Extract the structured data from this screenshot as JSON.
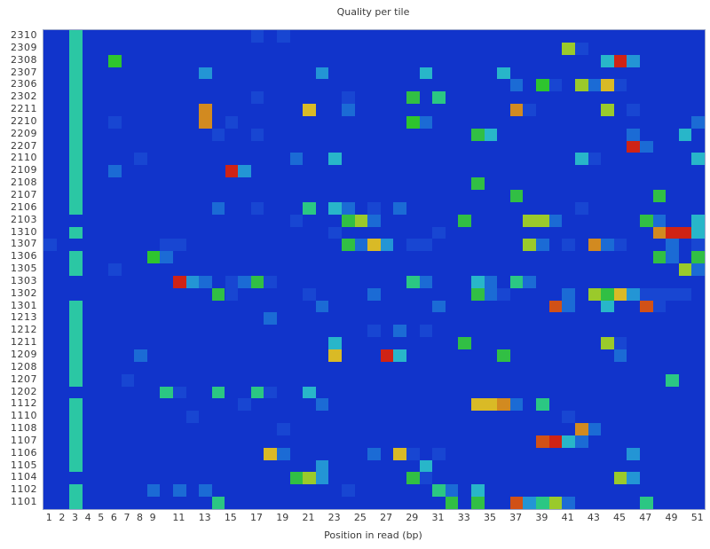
{
  "page": {
    "background": "#ffffff"
  },
  "chart_data": {
    "type": "heatmap",
    "title": "Quality per tile",
    "xlabel": "Position in read (bp)",
    "x_min": 1,
    "x_max": 51,
    "n_cols": 51,
    "x_tick_labels": [
      1,
      2,
      3,
      4,
      5,
      6,
      7,
      8,
      9,
      11,
      13,
      15,
      17,
      19,
      21,
      23,
      25,
      27,
      29,
      31,
      33,
      35,
      37,
      39,
      41,
      43,
      45,
      47,
      49,
      51
    ],
    "y_tick_labels": [
      "2310",
      "2309",
      "2308",
      "2307",
      "2306",
      "2302",
      "2211",
      "2210",
      "2209",
      "2207",
      "2110",
      "2109",
      "2108",
      "2107",
      "2106",
      "2103",
      "1310",
      "1307",
      "1306",
      "1305",
      "1303",
      "1302",
      "1301",
      "1213",
      "1212",
      "1211",
      "1209",
      "1208",
      "1207",
      "1202",
      "1112",
      "1110",
      "1108",
      "1107",
      "1106",
      "1105",
      "1104",
      "1102",
      "1101"
    ],
    "legend": "none",
    "grid": "off",
    "colors": {
      "plot_background": "#1134cb",
      "stripe": "#2bc7a4",
      "palette": {
        "t": "#2bc7a4",
        "d": "#1846d2",
        "m": "#1b6bd5",
        "B": "#2395d5",
        "c": "#28b6c9",
        "s": "#2bc783",
        "g": "#31bf44",
        "G": "#2ec52e",
        "yg": "#9aca2b",
        "Y": "#d9ba26",
        "o": "#d28a20",
        "O": "#d15117",
        "r": "#cf2315"
      }
    },
    "stripe_col": 3,
    "stripe_rows": [
      "2310",
      "2309",
      "2308",
      "2307",
      "2306",
      "2302",
      "2211",
      "2210",
      "2209",
      "2207",
      "2110",
      "2109",
      "2108",
      "2107",
      "2106",
      "1310",
      "1306",
      "1305",
      "1301",
      "1213",
      "1212",
      "1211",
      "1209",
      "1208",
      "1207",
      "1112",
      "1110",
      "1108",
      "1107",
      "1106",
      "1105",
      "1102",
      "1101"
    ],
    "cells": [
      [
        "2310",
        17,
        "d"
      ],
      [
        "2310",
        19,
        "d"
      ],
      [
        "2309",
        41,
        "yg"
      ],
      [
        "2309",
        42,
        "d"
      ],
      [
        "2308",
        6,
        "G"
      ],
      [
        "2308",
        44,
        "c"
      ],
      [
        "2308",
        45,
        "r"
      ],
      [
        "2308",
        46,
        "B"
      ],
      [
        "2307",
        13,
        "B"
      ],
      [
        "2307",
        22,
        "B"
      ],
      [
        "2307",
        30,
        "c"
      ],
      [
        "2307",
        36,
        "c"
      ],
      [
        "2306",
        37,
        "m"
      ],
      [
        "2306",
        39,
        "G"
      ],
      [
        "2306",
        40,
        "d"
      ],
      [
        "2306",
        42,
        "yg"
      ],
      [
        "2306",
        43,
        "m"
      ],
      [
        "2306",
        44,
        "Y"
      ],
      [
        "2306",
        45,
        "d"
      ],
      [
        "2302",
        17,
        "d"
      ],
      [
        "2302",
        24,
        "d"
      ],
      [
        "2302",
        29,
        "g"
      ],
      [
        "2302",
        31,
        "s"
      ],
      [
        "2211",
        13,
        "o"
      ],
      [
        "2211",
        21,
        "Y"
      ],
      [
        "2211",
        24,
        "m"
      ],
      [
        "2211",
        37,
        "o"
      ],
      [
        "2211",
        38,
        "d"
      ],
      [
        "2211",
        44,
        "yg"
      ],
      [
        "2211",
        46,
        "d"
      ],
      [
        "2210",
        6,
        "d"
      ],
      [
        "2210",
        13,
        "o"
      ],
      [
        "2210",
        15,
        "d"
      ],
      [
        "2210",
        29,
        "G"
      ],
      [
        "2210",
        30,
        "m"
      ],
      [
        "2210",
        51,
        "m"
      ],
      [
        "2209",
        14,
        "d"
      ],
      [
        "2209",
        17,
        "d"
      ],
      [
        "2209",
        34,
        "g"
      ],
      [
        "2209",
        35,
        "c"
      ],
      [
        "2209",
        46,
        "m"
      ],
      [
        "2209",
        50,
        "c"
      ],
      [
        "2207",
        46,
        "r"
      ],
      [
        "2207",
        47,
        "m"
      ],
      [
        "2110",
        8,
        "d"
      ],
      [
        "2110",
        20,
        "m"
      ],
      [
        "2110",
        23,
        "c"
      ],
      [
        "2110",
        42,
        "c"
      ],
      [
        "2110",
        43,
        "d"
      ],
      [
        "2110",
        51,
        "c"
      ],
      [
        "2109",
        6,
        "m"
      ],
      [
        "2109",
        15,
        "r"
      ],
      [
        "2109",
        16,
        "B"
      ],
      [
        "2108",
        34,
        "g"
      ],
      [
        "2107",
        37,
        "g"
      ],
      [
        "2107",
        48,
        "g"
      ],
      [
        "2106",
        14,
        "m"
      ],
      [
        "2106",
        17,
        "d"
      ],
      [
        "2106",
        21,
        "s"
      ],
      [
        "2106",
        23,
        "c"
      ],
      [
        "2106",
        24,
        "m"
      ],
      [
        "2106",
        26,
        "d"
      ],
      [
        "2106",
        28,
        "m"
      ],
      [
        "2106",
        42,
        "d"
      ],
      [
        "2103",
        20,
        "d"
      ],
      [
        "2103",
        24,
        "g"
      ],
      [
        "2103",
        25,
        "yg"
      ],
      [
        "2103",
        26,
        "m"
      ],
      [
        "2103",
        33,
        "g"
      ],
      [
        "2103",
        38,
        "yg"
      ],
      [
        "2103",
        39,
        "yg"
      ],
      [
        "2103",
        40,
        "m"
      ],
      [
        "2103",
        47,
        "g"
      ],
      [
        "2103",
        48,
        "m"
      ],
      [
        "2103",
        51,
        "c"
      ],
      [
        "1310",
        23,
        "d"
      ],
      [
        "1310",
        31,
        "d"
      ],
      [
        "1310",
        48,
        "o"
      ],
      [
        "1310",
        49,
        "r"
      ],
      [
        "1310",
        50,
        "r"
      ],
      [
        "1310",
        51,
        "c"
      ],
      [
        "1307",
        1,
        "d"
      ],
      [
        "1307",
        10,
        "d"
      ],
      [
        "1307",
        11,
        "d"
      ],
      [
        "1307",
        24,
        "g"
      ],
      [
        "1307",
        25,
        "m"
      ],
      [
        "1307",
        26,
        "Y"
      ],
      [
        "1307",
        27,
        "B"
      ],
      [
        "1307",
        29,
        "d"
      ],
      [
        "1307",
        30,
        "d"
      ],
      [
        "1307",
        38,
        "yg"
      ],
      [
        "1307",
        39,
        "m"
      ],
      [
        "1307",
        41,
        "d"
      ],
      [
        "1307",
        43,
        "o"
      ],
      [
        "1307",
        44,
        "m"
      ],
      [
        "1307",
        45,
        "d"
      ],
      [
        "1307",
        49,
        "m"
      ],
      [
        "1307",
        51,
        "d"
      ],
      [
        "1306",
        9,
        "G"
      ],
      [
        "1306",
        10,
        "m"
      ],
      [
        "1306",
        48,
        "g"
      ],
      [
        "1306",
        49,
        "m"
      ],
      [
        "1306",
        51,
        "g"
      ],
      [
        "1305",
        6,
        "d"
      ],
      [
        "1305",
        50,
        "yg"
      ],
      [
        "1305",
        51,
        "m"
      ],
      [
        "1303",
        11,
        "r"
      ],
      [
        "1303",
        12,
        "B"
      ],
      [
        "1303",
        13,
        "m"
      ],
      [
        "1303",
        15,
        "d"
      ],
      [
        "1303",
        16,
        "m"
      ],
      [
        "1303",
        17,
        "g"
      ],
      [
        "1303",
        18,
        "d"
      ],
      [
        "1303",
        29,
        "s"
      ],
      [
        "1303",
        30,
        "m"
      ],
      [
        "1303",
        34,
        "c"
      ],
      [
        "1303",
        35,
        "m"
      ],
      [
        "1303",
        37,
        "s"
      ],
      [
        "1303",
        38,
        "m"
      ],
      [
        "1302",
        14,
        "g"
      ],
      [
        "1302",
        15,
        "d"
      ],
      [
        "1302",
        21,
        "d"
      ],
      [
        "1302",
        26,
        "m"
      ],
      [
        "1302",
        34,
        "g"
      ],
      [
        "1302",
        35,
        "m"
      ],
      [
        "1302",
        36,
        "d"
      ],
      [
        "1302",
        41,
        "m"
      ],
      [
        "1302",
        43,
        "yg"
      ],
      [
        "1302",
        44,
        "g"
      ],
      [
        "1302",
        45,
        "Y"
      ],
      [
        "1302",
        46,
        "B"
      ],
      [
        "1302",
        47,
        "d"
      ],
      [
        "1302",
        48,
        "d"
      ],
      [
        "1302",
        49,
        "d"
      ],
      [
        "1302",
        50,
        "d"
      ],
      [
        "1301",
        22,
        "m"
      ],
      [
        "1301",
        31,
        "m"
      ],
      [
        "1301",
        40,
        "O"
      ],
      [
        "1301",
        41,
        "m"
      ],
      [
        "1301",
        44,
        "c"
      ],
      [
        "1301",
        47,
        "O"
      ],
      [
        "1301",
        48,
        "d"
      ],
      [
        "1213",
        18,
        "m"
      ],
      [
        "1212",
        26,
        "d"
      ],
      [
        "1212",
        28,
        "m"
      ],
      [
        "1212",
        30,
        "d"
      ],
      [
        "1211",
        23,
        "c"
      ],
      [
        "1211",
        33,
        "g"
      ],
      [
        "1211",
        44,
        "yg"
      ],
      [
        "1211",
        45,
        "d"
      ],
      [
        "1209",
        8,
        "m"
      ],
      [
        "1209",
        23,
        "Y"
      ],
      [
        "1209",
        27,
        "r"
      ],
      [
        "1209",
        28,
        "c"
      ],
      [
        "1209",
        36,
        "g"
      ],
      [
        "1209",
        45,
        "m"
      ],
      [
        "1207",
        7,
        "d"
      ],
      [
        "1207",
        49,
        "s"
      ],
      [
        "1202",
        10,
        "s"
      ],
      [
        "1202",
        11,
        "d"
      ],
      [
        "1202",
        14,
        "s"
      ],
      [
        "1202",
        17,
        "s"
      ],
      [
        "1202",
        18,
        "d"
      ],
      [
        "1202",
        21,
        "c"
      ],
      [
        "1112",
        16,
        "d"
      ],
      [
        "1112",
        22,
        "m"
      ],
      [
        "1112",
        34,
        "Y"
      ],
      [
        "1112",
        35,
        "Y"
      ],
      [
        "1112",
        36,
        "o"
      ],
      [
        "1112",
        37,
        "m"
      ],
      [
        "1112",
        39,
        "s"
      ],
      [
        "1110",
        12,
        "d"
      ],
      [
        "1110",
        41,
        "d"
      ],
      [
        "1108",
        19,
        "d"
      ],
      [
        "1108",
        42,
        "o"
      ],
      [
        "1108",
        43,
        "m"
      ],
      [
        "1107",
        39,
        "O"
      ],
      [
        "1107",
        40,
        "r"
      ],
      [
        "1107",
        41,
        "c"
      ],
      [
        "1107",
        42,
        "m"
      ],
      [
        "1106",
        18,
        "Y"
      ],
      [
        "1106",
        19,
        "m"
      ],
      [
        "1106",
        26,
        "m"
      ],
      [
        "1106",
        28,
        "Y"
      ],
      [
        "1106",
        29,
        "d"
      ],
      [
        "1106",
        31,
        "d"
      ],
      [
        "1106",
        46,
        "B"
      ],
      [
        "1105",
        22,
        "B"
      ],
      [
        "1105",
        30,
        "c"
      ],
      [
        "1104",
        20,
        "g"
      ],
      [
        "1104",
        21,
        "yg"
      ],
      [
        "1104",
        22,
        "B"
      ],
      [
        "1104",
        29,
        "g"
      ],
      [
        "1104",
        30,
        "d"
      ],
      [
        "1104",
        45,
        "yg"
      ],
      [
        "1104",
        46,
        "B"
      ],
      [
        "1102",
        9,
        "m"
      ],
      [
        "1102",
        11,
        "m"
      ],
      [
        "1102",
        13,
        "m"
      ],
      [
        "1102",
        24,
        "d"
      ],
      [
        "1102",
        31,
        "s"
      ],
      [
        "1102",
        32,
        "m"
      ],
      [
        "1102",
        34,
        "c"
      ],
      [
        "1101",
        14,
        "s"
      ],
      [
        "1101",
        32,
        "g"
      ],
      [
        "1101",
        34,
        "g"
      ],
      [
        "1101",
        37,
        "O"
      ],
      [
        "1101",
        38,
        "B"
      ],
      [
        "1101",
        39,
        "s"
      ],
      [
        "1101",
        40,
        "yg"
      ],
      [
        "1101",
        41,
        "m"
      ],
      [
        "1101",
        47,
        "s"
      ]
    ]
  }
}
